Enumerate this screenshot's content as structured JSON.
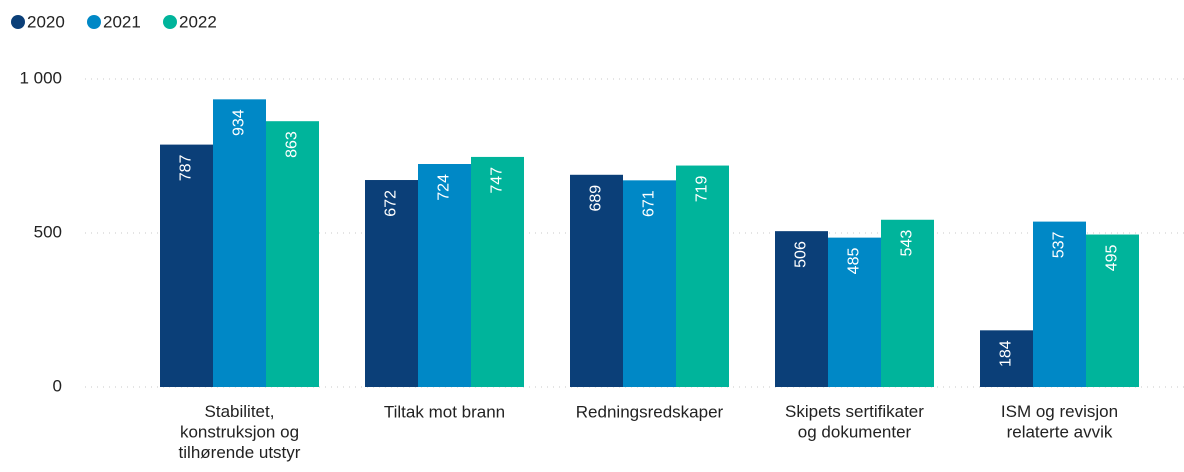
{
  "chart_data": {
    "type": "bar",
    "categories": [
      "Stabilitet,\nkonstruksjon og\ntilhørende utstyr",
      "Tiltak mot brann",
      "Redningsredskaper",
      "Skipets sertifikater\nog dokumenter",
      "ISM og revisjon\nrelaterte avvik"
    ],
    "series": [
      {
        "name": "2020",
        "color": "#0b3f78",
        "values": [
          787,
          672,
          689,
          506,
          184
        ]
      },
      {
        "name": "2021",
        "color": "#0088c6",
        "values": [
          934,
          724,
          671,
          485,
          537
        ]
      },
      {
        "name": "2022",
        "color": "#00b49b",
        "values": [
          863,
          747,
          719,
          543,
          495
        ]
      }
    ],
    "ylim": [
      0,
      1000
    ],
    "yticks": [
      0,
      500,
      {
        "value": 1000,
        "label": "1 000"
      }
    ],
    "grid": true,
    "legend": "top-left"
  }
}
